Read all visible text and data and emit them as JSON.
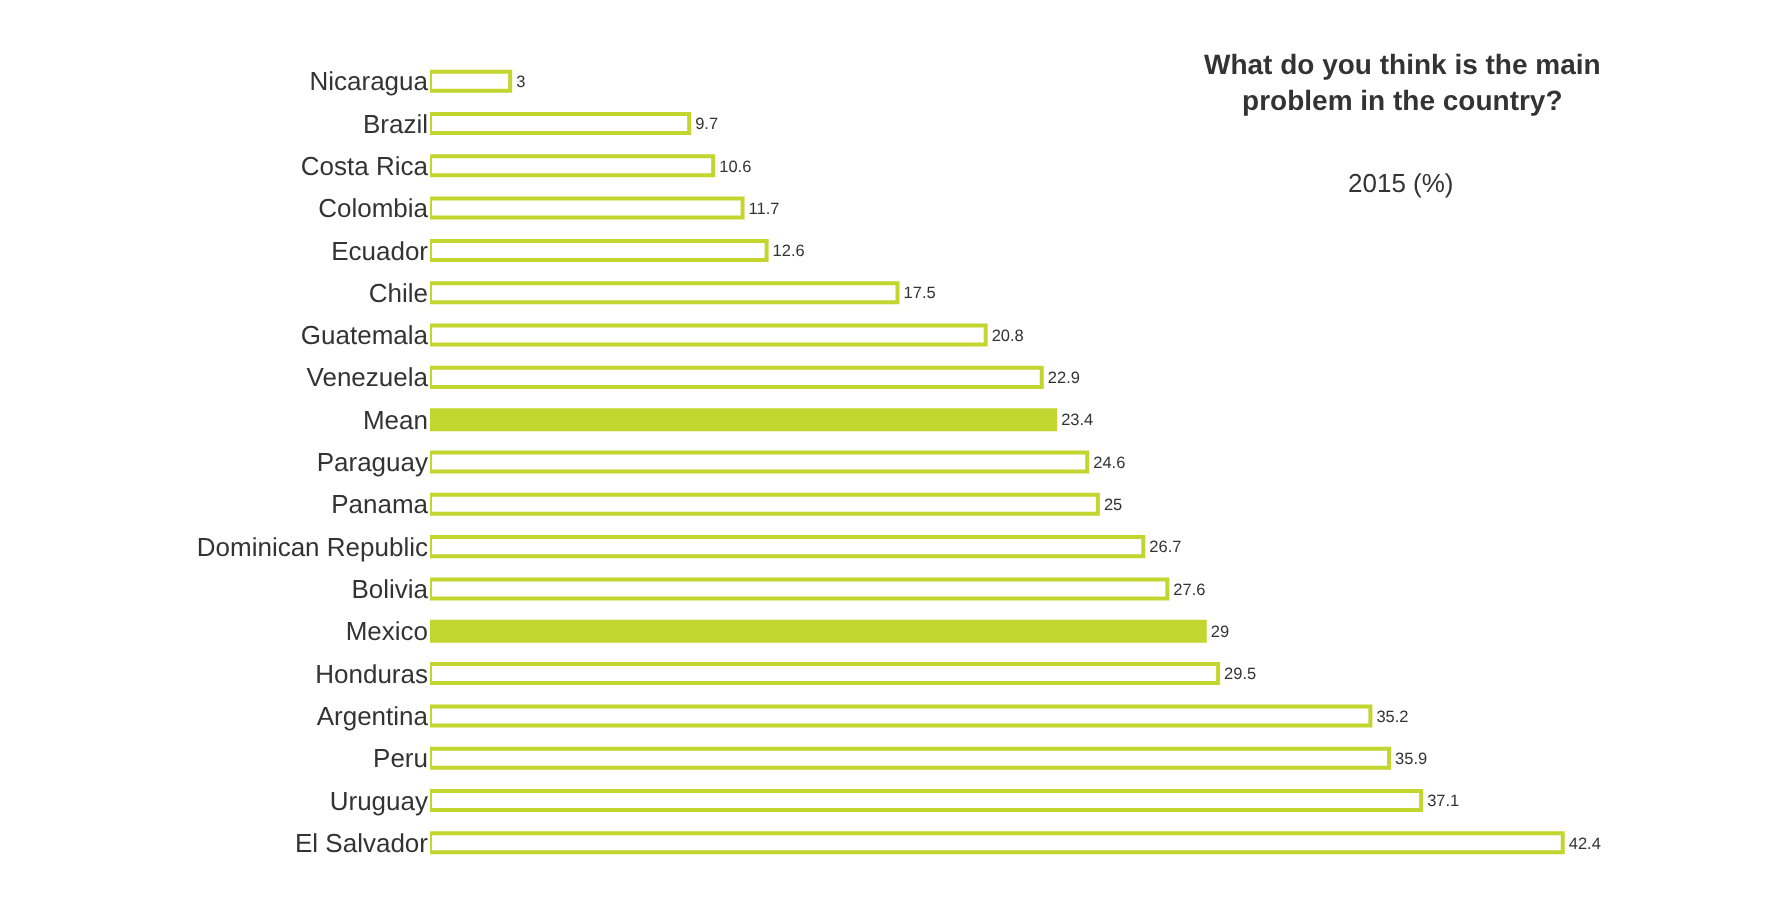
{
  "chart_data": {
    "type": "bar",
    "orientation": "horizontal",
    "title": "What do you think is the main\nproblem in the country?",
    "subtitle": "2015 (%)",
    "categories": [
      "Nicaragua",
      "Brazil",
      "Costa Rica",
      "Colombia",
      "Ecuador",
      "Chile",
      "Guatemala",
      "Venezuela",
      "Mean",
      "Paraguay",
      "Panama",
      "Dominican Republic",
      "Bolivia",
      "Mexico",
      "Honduras",
      "Argentina",
      "Peru",
      "Uruguay",
      "El Salvador"
    ],
    "values": [
      3,
      9.7,
      10.6,
      11.7,
      12.6,
      17.5,
      20.8,
      22.9,
      23.4,
      24.6,
      25,
      26.7,
      27.6,
      29,
      29.5,
      35.2,
      35.9,
      37.1,
      42.4
    ],
    "color": "#c3d62f",
    "colors": [
      "#ffffff",
      "#ffffff",
      "#ffffff",
      "#ffffff",
      "#ffffff",
      "#ffffff",
      "#ffffff",
      "#ffffff",
      "#c3d62f",
      "#ffffff",
      "#ffffff",
      "#ffffff",
      "#ffffff",
      "#c3d62f",
      "#ffffff",
      "#ffffff",
      "#ffffff",
      "#ffffff",
      "#ffffff"
    ],
    "data_labels": true
  }
}
